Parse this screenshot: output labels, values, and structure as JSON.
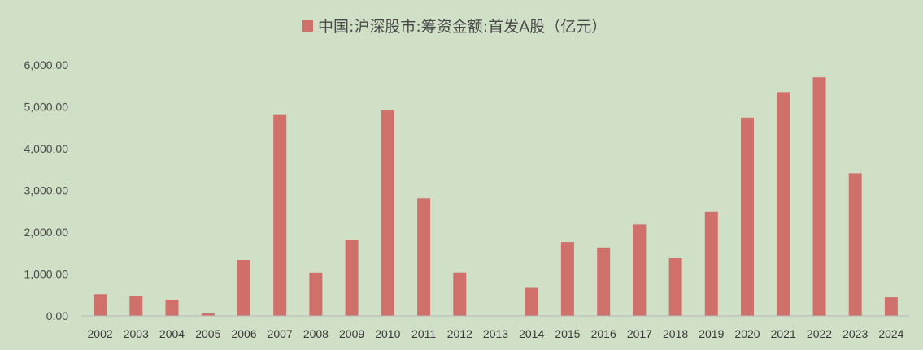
{
  "chart_data": {
    "type": "bar",
    "series": [
      {
        "name": "中国:沪深股市:筹资金额:首发A股（亿元）",
        "color": "#d0706a",
        "values": [
          518,
          473,
          389,
          60,
          1339,
          4822,
          1033,
          1822,
          4911,
          2809,
          1034,
          0,
          669,
          1766,
          1634,
          2186,
          1378,
          2490,
          4742,
          5352,
          5705,
          3410,
          444
        ]
      }
    ],
    "categories": [
      "2002",
      "2003",
      "2004",
      "2005",
      "2006",
      "2007",
      "2008",
      "2009",
      "2010",
      "2011",
      "2012",
      "2013",
      "2014",
      "2015",
      "2016",
      "2017",
      "2018",
      "2019",
      "2020",
      "2021",
      "2022",
      "2023",
      "2024"
    ],
    "ylim": [
      0,
      6000
    ],
    "yticks": [
      "0.00",
      "1,000.00",
      "2,000.00",
      "3,000.00",
      "4,000.00",
      "5,000.00",
      "6,000.00"
    ],
    "ytick_values": [
      0,
      1000,
      2000,
      3000,
      4000,
      5000,
      6000
    ],
    "legend_position": "top",
    "grid": false,
    "colors": {
      "background": "#cfe0c6",
      "axis": "#b9b9b9",
      "text": "#4a4a4a"
    }
  }
}
